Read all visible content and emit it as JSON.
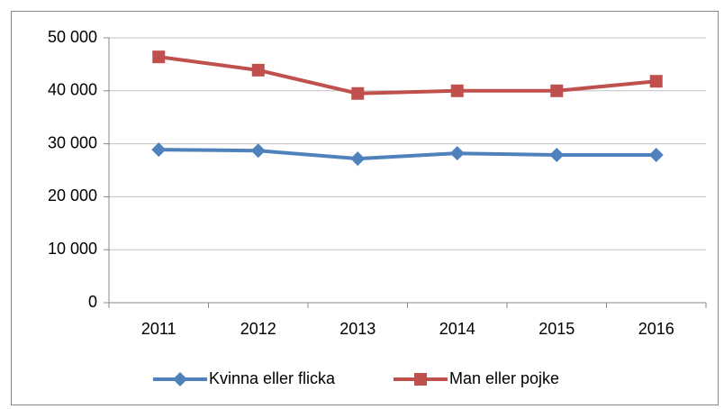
{
  "chart_data": {
    "type": "line",
    "categories": [
      "2011",
      "2012",
      "2013",
      "2014",
      "2015",
      "2016"
    ],
    "series": [
      {
        "name": "Kvinna eller flicka",
        "color": "#4f81bd",
        "values": [
          28900,
          28700,
          27200,
          28200,
          27900,
          27900
        ]
      },
      {
        "name": "Man eller pojke",
        "color": "#c0504d",
        "values": [
          46400,
          43900,
          39500,
          40000,
          40000,
          41800
        ]
      }
    ],
    "ylim": [
      0,
      50000
    ],
    "yticks": [
      0,
      {
        "value": 10000,
        "label": "10 000"
      },
      {
        "value": 20000,
        "label": "20 000"
      },
      {
        "value": 30000,
        "label": "30 000"
      },
      {
        "value": 40000,
        "label": "40 000"
      },
      {
        "value": 50000,
        "label": "50 000"
      }
    ],
    "grid": true,
    "legend": "bottom"
  }
}
